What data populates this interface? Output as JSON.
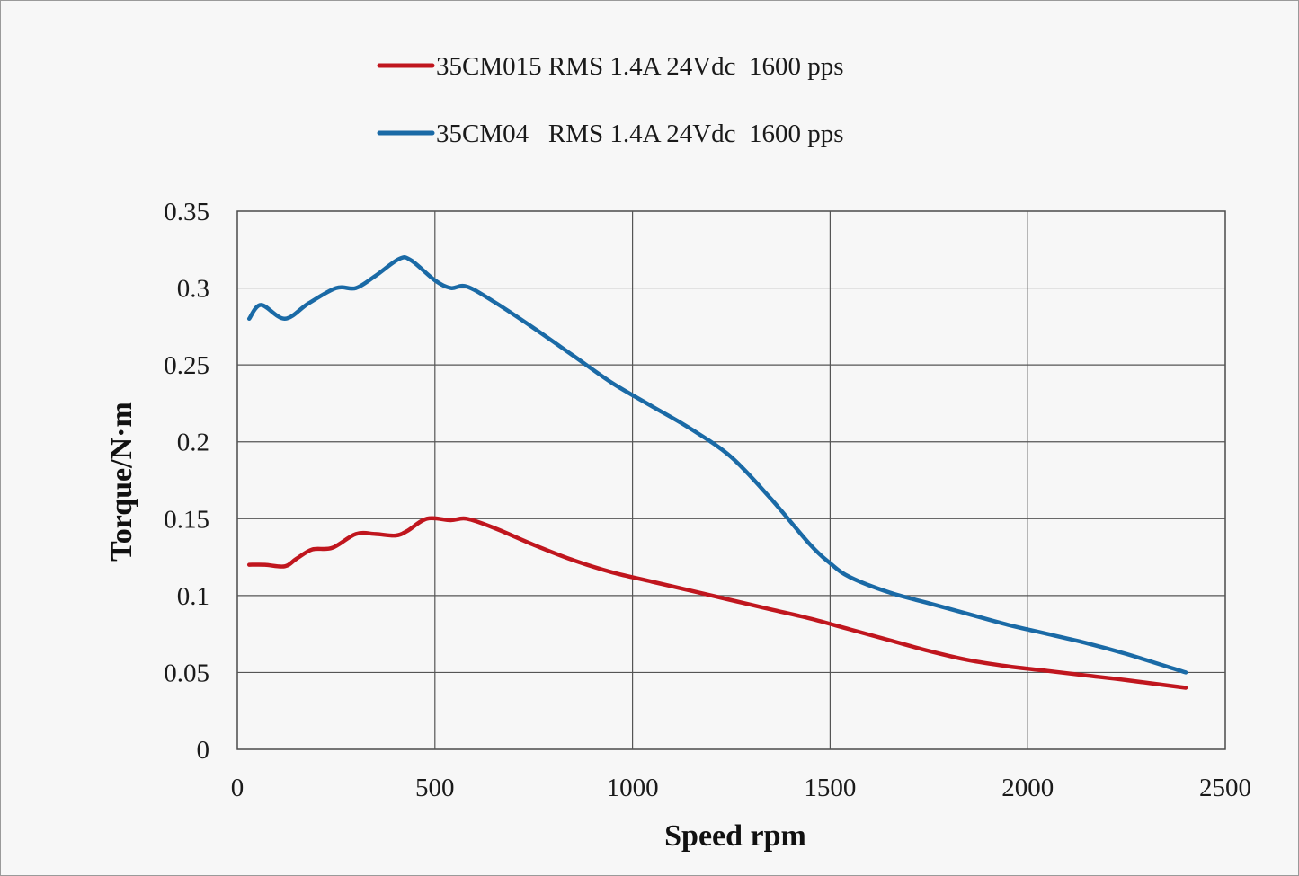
{
  "chart_data": {
    "type": "line",
    "title": "",
    "xlabel": "Speed rpm",
    "ylabel": "Torque/N·m",
    "xlim": [
      0,
      2500
    ],
    "ylim": [
      0,
      0.35
    ],
    "xticks": [
      "0",
      "500",
      "1000",
      "1500",
      "2000",
      "2500"
    ],
    "yticks": [
      "0",
      "0.05",
      "0.1",
      "0.15",
      "0.2",
      "0.25",
      "0.3",
      "0.35"
    ],
    "xtick_values": [
      0,
      500,
      1000,
      1500,
      2000,
      2500
    ],
    "ytick_values": [
      0,
      0.05,
      0.1,
      0.15,
      0.2,
      0.25,
      0.3,
      0.35
    ],
    "grid": true,
    "legend_position": "top-center",
    "series": [
      {
        "name": "35CM015 RMS 1.4A 24Vdc  1600 pps",
        "color": "#c0161e",
        "x": [
          30,
          70,
          120,
          150,
          190,
          240,
          300,
          350,
          400,
          430,
          480,
          540,
          580,
          650,
          750,
          850,
          950,
          1050,
          1150,
          1250,
          1350,
          1450,
          1550,
          1650,
          1750,
          1850,
          1950,
          2050,
          2150,
          2250,
          2400
        ],
        "y": [
          0.12,
          0.12,
          0.119,
          0.124,
          0.13,
          0.131,
          0.14,
          0.14,
          0.139,
          0.142,
          0.15,
          0.149,
          0.15,
          0.144,
          0.133,
          0.123,
          0.115,
          0.109,
          0.103,
          0.097,
          0.091,
          0.085,
          0.078,
          0.071,
          0.064,
          0.058,
          0.054,
          0.051,
          0.048,
          0.045,
          0.04
        ]
      },
      {
        "name": "35CM04   RMS 1.4A 24Vdc  1600 pps",
        "color": "#1a6aa6",
        "x": [
          30,
          60,
          120,
          180,
          250,
          300,
          350,
          410,
          440,
          500,
          540,
          580,
          650,
          750,
          850,
          950,
          1050,
          1150,
          1250,
          1350,
          1450,
          1500,
          1550,
          1650,
          1750,
          1850,
          1950,
          2050,
          2150,
          2250,
          2400
        ],
        "y": [
          0.28,
          0.289,
          0.28,
          0.29,
          0.3,
          0.3,
          0.308,
          0.319,
          0.318,
          0.305,
          0.3,
          0.301,
          0.291,
          0.274,
          0.256,
          0.238,
          0.223,
          0.208,
          0.19,
          0.163,
          0.133,
          0.121,
          0.112,
          0.102,
          0.095,
          0.088,
          0.081,
          0.075,
          0.069,
          0.062,
          0.05
        ]
      }
    ]
  }
}
